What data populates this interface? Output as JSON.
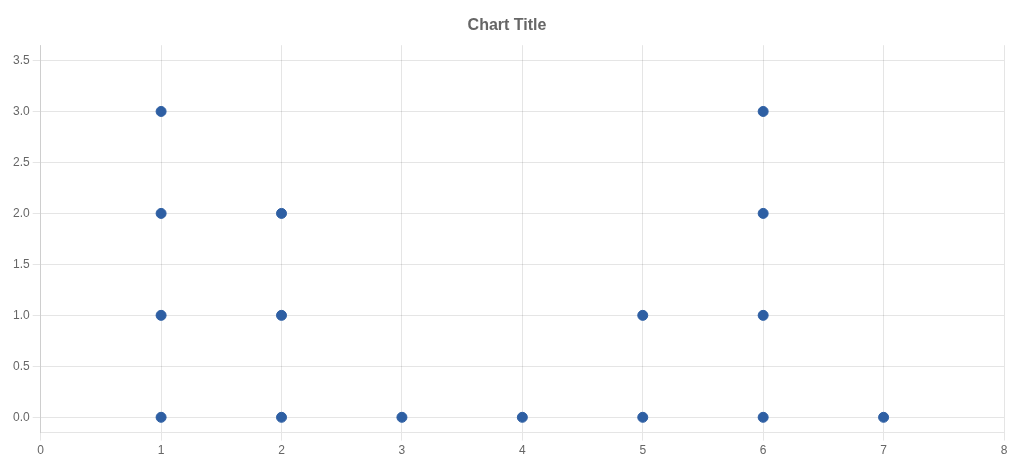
{
  "chart_data": {
    "type": "scatter",
    "title": "Chart Title",
    "x": [
      1,
      1,
      1,
      1,
      2,
      2,
      2,
      3,
      4,
      5,
      5,
      6,
      6,
      6,
      6,
      7
    ],
    "values": [
      0,
      1,
      2,
      3,
      0,
      1,
      2,
      0,
      0,
      0,
      1,
      0,
      1,
      2,
      3,
      0
    ],
    "color": "#2E5FA3",
    "xlim": [
      0,
      8
    ],
    "ylim": [
      -0.15,
      3.65
    ],
    "xticks": [
      0,
      1,
      2,
      3,
      4,
      5,
      6,
      7,
      8
    ],
    "yticks": [
      {
        "value": 0,
        "label": "0.0"
      },
      0.5,
      {
        "value": 1,
        "label": "1.0"
      },
      1.5,
      {
        "value": 2,
        "label": "2.0"
      },
      2.5,
      {
        "value": 3,
        "label": "3.0"
      },
      3.5
    ],
    "grid": true
  }
}
